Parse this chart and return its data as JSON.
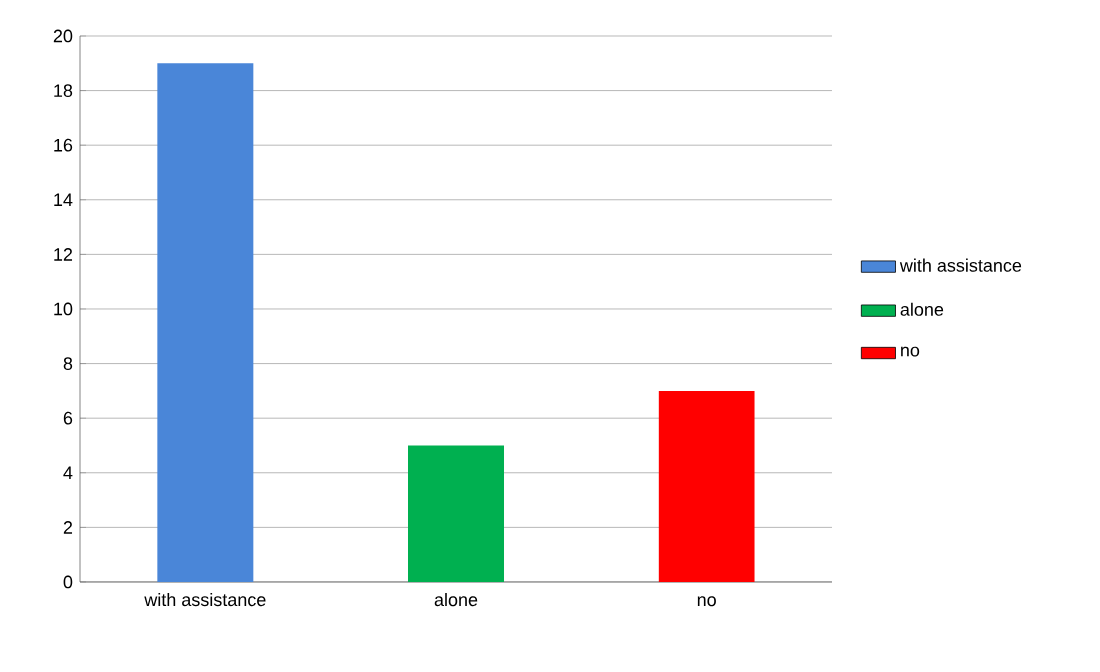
{
  "chart_data": {
    "type": "bar",
    "categories": [
      "with assistance",
      "alone",
      "no"
    ],
    "series": [
      {
        "name": "with assistance",
        "color": "#4a86d8",
        "values": [
          19,
          null,
          null
        ]
      },
      {
        "name": "alone",
        "color": "#00b050",
        "values": [
          null,
          5,
          null
        ]
      },
      {
        "name": "no",
        "color": "#ff0000",
        "values": [
          null,
          null,
          7
        ]
      }
    ],
    "ylim": [
      0,
      20
    ],
    "yticks": [
      0,
      2,
      4,
      6,
      8,
      10,
      12,
      14,
      16,
      18,
      20
    ],
    "grid": "y",
    "legend": "right"
  }
}
